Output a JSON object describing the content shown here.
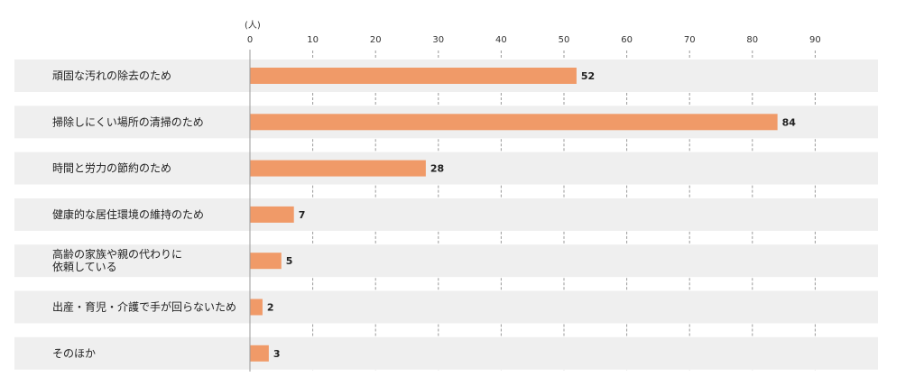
{
  "chart_data": {
    "type": "bar",
    "orientation": "horizontal",
    "unit": "(人)",
    "xlim": [
      0,
      90
    ],
    "ticks": [
      0,
      10,
      20,
      30,
      40,
      50,
      60,
      70,
      80,
      90
    ],
    "categories": [
      [
        "頑固な汚れの除去のため"
      ],
      [
        "掃除しにくい場所の清掃のため"
      ],
      [
        "時間と労力の節約のため"
      ],
      [
        "健康的な居住環境の維持のため"
      ],
      [
        "高齢の家族や親の代わりに",
        "依頼している"
      ],
      [
        "出産・育児・介護で手が回らないため"
      ],
      [
        "そのほか"
      ]
    ],
    "values": [
      52,
      84,
      28,
      7,
      5,
      2,
      3
    ],
    "grid": true,
    "legend": "none",
    "colors": {
      "bar": "#F09A68",
      "row_band": "#EFEFEF",
      "axis": "#9A9A9A",
      "grid": "#9A9A9A"
    }
  }
}
